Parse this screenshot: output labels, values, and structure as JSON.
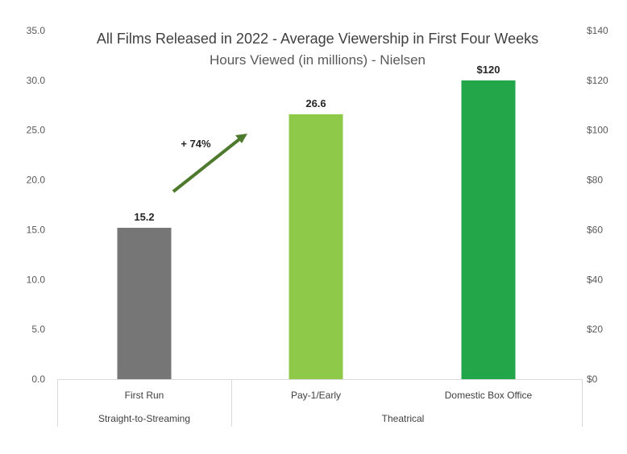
{
  "chart_data": {
    "type": "bar",
    "title": "All Films Released in 2022 - Average Viewership in First Four Weeks",
    "subtitle": "Hours Viewed (in millions) - Nielsen",
    "categories": [
      "First Run",
      "Pay-1/Early",
      "Domestic Box Office"
    ],
    "groups": [
      {
        "label": "Straight-to-Streaming",
        "categories": [
          "First Run"
        ]
      },
      {
        "label": "Theatrical",
        "categories": [
          "Pay-1/Early",
          "Domestic Box Office"
        ]
      }
    ],
    "series": [
      {
        "values": [
          15.2,
          26.6,
          null
        ],
        "axis": "left",
        "data_labels": [
          "15.2",
          "26.6",
          ""
        ],
        "colors": [
          "#767676",
          "#8fc94a",
          "#22a649"
        ]
      },
      {
        "values": [
          null,
          null,
          120
        ],
        "axis": "right",
        "data_labels": [
          "",
          "",
          "$120"
        ],
        "colors": [
          "",
          "",
          "#22a649"
        ]
      }
    ],
    "left_axis": {
      "ylim": [
        0,
        35
      ],
      "ticks": [
        "0.0",
        "5.0",
        "10.0",
        "15.0",
        "20.0",
        "25.0",
        "30.0",
        "35.0"
      ]
    },
    "right_axis": {
      "ylim": [
        0,
        140
      ],
      "ticks": [
        "$0",
        "$20",
        "$40",
        "$60",
        "$80",
        "$100",
        "$120",
        "$140"
      ]
    },
    "annotation": {
      "text": "+ 74%",
      "arrow_color": "#4e7a2e"
    },
    "grid": false,
    "legend": "none"
  }
}
